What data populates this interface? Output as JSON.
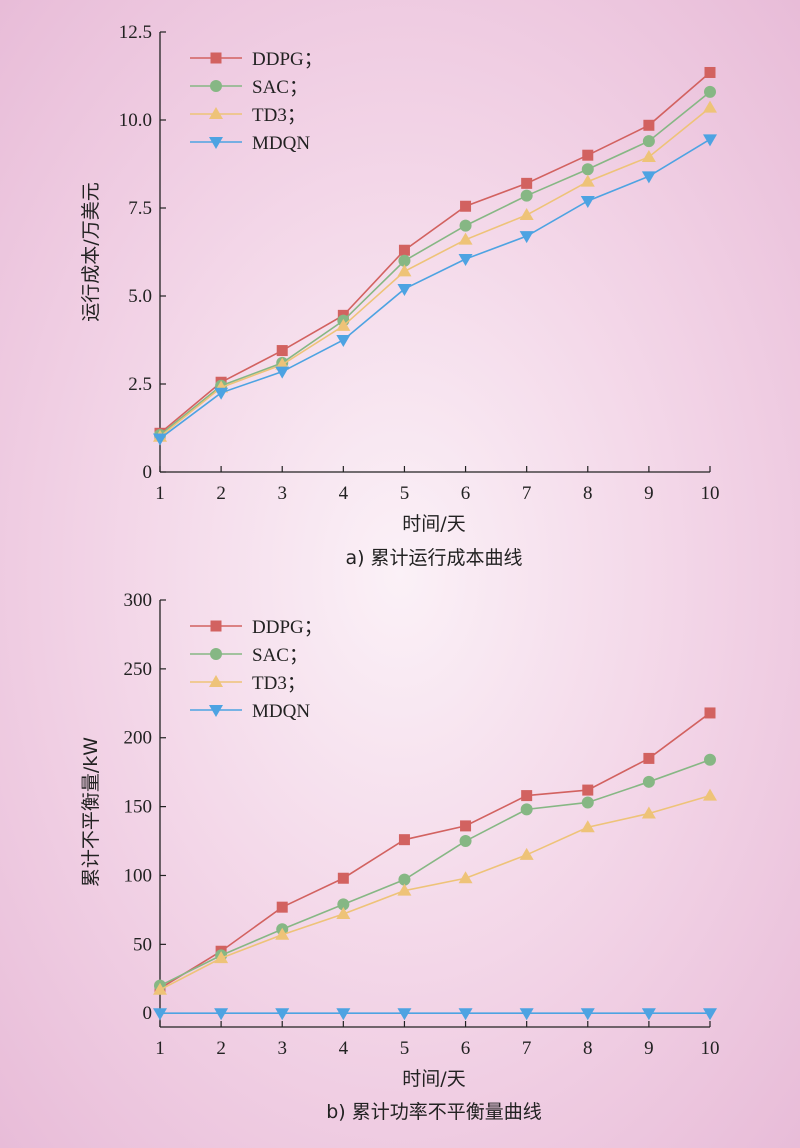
{
  "figure": {
    "charts": [
      {
        "caption": "a) 累计运行成本曲线",
        "xlabel": "时间/天",
        "ylabel": "运行成本/万美元"
      },
      {
        "caption": "b) 累计功率不平衡量曲线",
        "xlabel": "时间/天",
        "ylabel": "累计不平衡量/kW"
      }
    ]
  },
  "colors": {
    "DDPG": "#d26260",
    "SAC": "#86b784",
    "TD3": "#eec378",
    "MDQN": "#4da3e2"
  },
  "chart_data": [
    {
      "type": "line",
      "caption": "a) 累计运行成本曲线",
      "xlabel": "时间/天",
      "ylabel": "运行成本/万美元",
      "x": [
        1,
        2,
        3,
        4,
        5,
        6,
        7,
        8,
        9,
        10
      ],
      "xlim": [
        1,
        10
      ],
      "ylim": [
        0,
        12.5
      ],
      "yticks": [
        0,
        2.5,
        5.0,
        7.5,
        10.0,
        12.5
      ],
      "ytick_labels": [
        "0",
        "2.5",
        "5.0",
        "7.5",
        "10.0",
        "12.5"
      ],
      "legend_position": "top-left",
      "series": [
        {
          "name": "DDPG；",
          "key": "DDPG",
          "marker": "square",
          "values": [
            1.1,
            2.55,
            3.45,
            4.45,
            6.3,
            7.55,
            8.2,
            9.0,
            9.85,
            11.35
          ]
        },
        {
          "name": "SAC；",
          "key": "SAC",
          "marker": "circle",
          "values": [
            1.05,
            2.45,
            3.1,
            4.3,
            6.0,
            7.0,
            7.85,
            8.6,
            9.4,
            10.8
          ]
        },
        {
          "name": "TD3；",
          "key": "TD3",
          "marker": "triangle-up",
          "values": [
            1.0,
            2.4,
            3.05,
            4.15,
            5.7,
            6.6,
            7.3,
            8.25,
            8.95,
            10.35
          ]
        },
        {
          "name": "MDQN",
          "key": "MDQN",
          "marker": "triangle-down",
          "values": [
            0.95,
            2.25,
            2.85,
            3.75,
            5.2,
            6.05,
            6.7,
            7.7,
            8.4,
            9.45
          ]
        }
      ]
    },
    {
      "type": "line",
      "caption": "b) 累计功率不平衡量曲线",
      "xlabel": "时间/天",
      "ylabel": "累计不平衡量/kW",
      "x": [
        1,
        2,
        3,
        4,
        5,
        6,
        7,
        8,
        9,
        10
      ],
      "xlim": [
        1,
        10
      ],
      "ylim": [
        -10,
        300
      ],
      "yticks": [
        0,
        50,
        100,
        150,
        200,
        250,
        300
      ],
      "ytick_labels": [
        "0",
        "50",
        "100",
        "150",
        "200",
        "250",
        "300"
      ],
      "legend_position": "top-left",
      "series": [
        {
          "name": "DDPG；",
          "key": "DDPG",
          "marker": "square",
          "values": [
            18,
            45,
            77,
            98,
            126,
            136,
            158,
            162,
            185,
            218
          ]
        },
        {
          "name": "SAC；",
          "key": "SAC",
          "marker": "circle",
          "values": [
            20,
            42,
            61,
            79,
            97,
            125,
            148,
            153,
            168,
            184
          ]
        },
        {
          "name": "TD3；",
          "key": "TD3",
          "marker": "triangle-up",
          "values": [
            17,
            40,
            57,
            72,
            89,
            98,
            115,
            135,
            145,
            158
          ]
        },
        {
          "name": "MDQN",
          "key": "MDQN",
          "marker": "triangle-down",
          "values": [
            0,
            0,
            0,
            0,
            0,
            0,
            0,
            0,
            0,
            0
          ]
        }
      ]
    }
  ]
}
